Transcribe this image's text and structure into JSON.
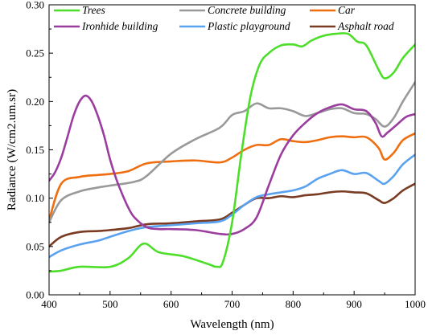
{
  "chart_data": {
    "type": "line",
    "xlabel": "Wavelength (nm)",
    "ylabel": "Radiance (W/cm2.um.sr)",
    "xlim": [
      400,
      1000
    ],
    "ylim": [
      0.0,
      0.3
    ],
    "xticks": [
      400,
      500,
      600,
      700,
      800,
      900,
      1000
    ],
    "yticks": [
      0.0,
      0.05,
      0.1,
      0.15,
      0.2,
      0.25,
      0.3
    ],
    "ytick_labels": [
      "0.00",
      "0.05",
      "0.10",
      "0.15",
      "0.20",
      "0.25",
      "0.30"
    ],
    "grid": false,
    "legend_position": "top",
    "series": [
      {
        "name": "Trees",
        "color": "#4dde2a",
        "x": [
          400,
          420,
          450,
          500,
          530,
          555,
          580,
          620,
          660,
          675,
          685,
          700,
          715,
          730,
          745,
          760,
          780,
          800,
          815,
          830,
          850,
          870,
          890,
          905,
          920,
          940,
          950,
          965,
          980,
          1000
        ],
        "y": [
          0.024,
          0.025,
          0.029,
          0.029,
          0.038,
          0.053,
          0.044,
          0.04,
          0.032,
          0.029,
          0.034,
          0.075,
          0.145,
          0.205,
          0.238,
          0.25,
          0.258,
          0.259,
          0.257,
          0.263,
          0.268,
          0.27,
          0.27,
          0.262,
          0.258,
          0.233,
          0.224,
          0.23,
          0.245,
          0.259
        ]
      },
      {
        "name": "Concrete building",
        "color": "#999999",
        "x": [
          400,
          420,
          450,
          480,
          500,
          540,
          560,
          600,
          640,
          680,
          700,
          720,
          740,
          760,
          780,
          800,
          820,
          840,
          860,
          880,
          900,
          920,
          935,
          950,
          965,
          980,
          1000
        ],
        "y": [
          0.075,
          0.098,
          0.107,
          0.111,
          0.113,
          0.117,
          0.123,
          0.146,
          0.161,
          0.173,
          0.186,
          0.19,
          0.198,
          0.193,
          0.193,
          0.19,
          0.185,
          0.188,
          0.192,
          0.193,
          0.188,
          0.187,
          0.182,
          0.174,
          0.183,
          0.2,
          0.22
        ]
      },
      {
        "name": "Car",
        "color": "#ee6e10",
        "x": [
          400,
          420,
          450,
          480,
          500,
          530,
          560,
          600,
          640,
          680,
          700,
          720,
          740,
          760,
          780,
          800,
          820,
          840,
          860,
          880,
          900,
          920,
          940,
          950,
          965,
          980,
          1000
        ],
        "y": [
          0.077,
          0.115,
          0.122,
          0.124,
          0.125,
          0.128,
          0.136,
          0.138,
          0.139,
          0.137,
          0.142,
          0.15,
          0.155,
          0.155,
          0.161,
          0.159,
          0.158,
          0.16,
          0.163,
          0.164,
          0.163,
          0.163,
          0.152,
          0.14,
          0.147,
          0.16,
          0.167
        ]
      },
      {
        "name": "Ironhide building",
        "color": "#9b3d9e",
        "x": [
          400,
          410,
          420,
          430,
          440,
          450,
          460,
          470,
          480,
          490,
          500,
          510,
          520,
          530,
          540,
          560,
          580,
          600,
          640,
          680,
          700,
          720,
          740,
          760,
          780,
          800,
          820,
          840,
          860,
          880,
          900,
          920,
          935,
          945,
          955,
          970,
          985,
          1000
        ],
        "y": [
          0.118,
          0.127,
          0.142,
          0.163,
          0.185,
          0.2,
          0.206,
          0.2,
          0.185,
          0.165,
          0.14,
          0.12,
          0.104,
          0.09,
          0.08,
          0.07,
          0.068,
          0.068,
          0.067,
          0.063,
          0.063,
          0.068,
          0.08,
          0.113,
          0.145,
          0.165,
          0.178,
          0.188,
          0.194,
          0.197,
          0.192,
          0.19,
          0.178,
          0.164,
          0.168,
          0.176,
          0.184,
          0.187
        ]
      },
      {
        "name": "Plastic playground",
        "color": "#5aa2f0",
        "x": [
          400,
          420,
          450,
          480,
          500,
          530,
          560,
          600,
          640,
          680,
          700,
          720,
          740,
          760,
          780,
          800,
          820,
          840,
          860,
          880,
          900,
          920,
          940,
          950,
          965,
          980,
          1000
        ],
        "y": [
          0.039,
          0.046,
          0.052,
          0.056,
          0.06,
          0.066,
          0.07,
          0.072,
          0.074,
          0.076,
          0.083,
          0.093,
          0.101,
          0.104,
          0.106,
          0.108,
          0.112,
          0.12,
          0.125,
          0.129,
          0.125,
          0.126,
          0.118,
          0.115,
          0.123,
          0.135,
          0.145
        ]
      },
      {
        "name": "Asphalt road",
        "color": "#7a3b22",
        "x": [
          400,
          420,
          450,
          480,
          500,
          530,
          560,
          600,
          640,
          680,
          700,
          720,
          740,
          760,
          780,
          800,
          820,
          840,
          860,
          880,
          900,
          920,
          940,
          950,
          965,
          980,
          1000
        ],
        "y": [
          0.05,
          0.06,
          0.065,
          0.066,
          0.067,
          0.069,
          0.073,
          0.074,
          0.076,
          0.078,
          0.085,
          0.093,
          0.1,
          0.1,
          0.102,
          0.101,
          0.103,
          0.104,
          0.106,
          0.107,
          0.106,
          0.105,
          0.098,
          0.095,
          0.1,
          0.108,
          0.115
        ]
      }
    ]
  }
}
